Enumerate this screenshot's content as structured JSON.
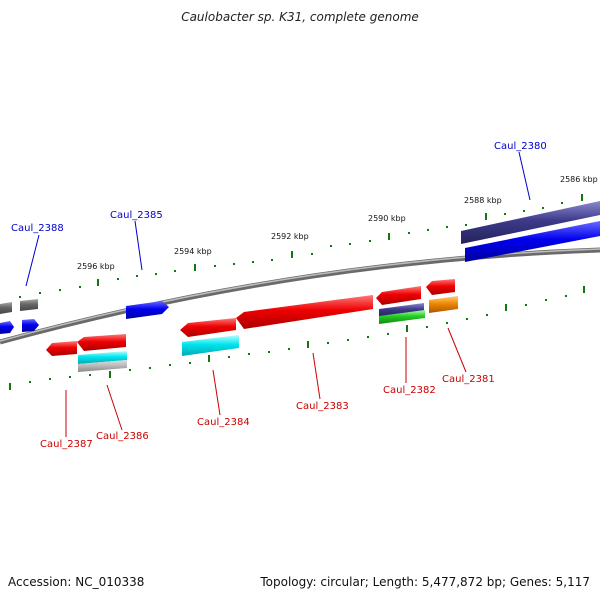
{
  "title": "Caulobacter sp. K31, complete genome",
  "footer": {
    "accession": "Accession: NC_010338",
    "summary": "Topology: circular; Length: 5,477,872 bp; Genes: 5,117"
  },
  "scale_labels": [
    "2596 kbp",
    "2594 kbp",
    "2592 kbp",
    "2590 kbp",
    "2588 kbp",
    "2586 kbp"
  ],
  "genes": [
    {
      "name": "Caul_2388",
      "strand": "top",
      "color": "#0000cc"
    },
    {
      "name": "Caul_2385",
      "strand": "top",
      "color": "#0000cc"
    },
    {
      "name": "Caul_2380",
      "strand": "top",
      "color": "#0000cc"
    },
    {
      "name": "Caul_2387",
      "strand": "bottom",
      "color": "#cc0000"
    },
    {
      "name": "Caul_2386",
      "strand": "bottom",
      "color": "#cc0000"
    },
    {
      "name": "Caul_2384",
      "strand": "bottom",
      "color": "#cc0000"
    },
    {
      "name": "Caul_2383",
      "strand": "bottom",
      "color": "#cc0000"
    },
    {
      "name": "Caul_2382",
      "strand": "bottom",
      "color": "#cc0000"
    },
    {
      "name": "Caul_2381",
      "strand": "bottom",
      "color": "#cc0000"
    }
  ],
  "colors": {
    "forward": "#0000ee",
    "reverse": "#ee0000",
    "cyan": "#00e5ee",
    "purple": "#3d3a8a",
    "green": "#22cc22",
    "orange": "#ee8800",
    "gray": "#777777",
    "backbone": "#888888",
    "tick": "#117711"
  }
}
